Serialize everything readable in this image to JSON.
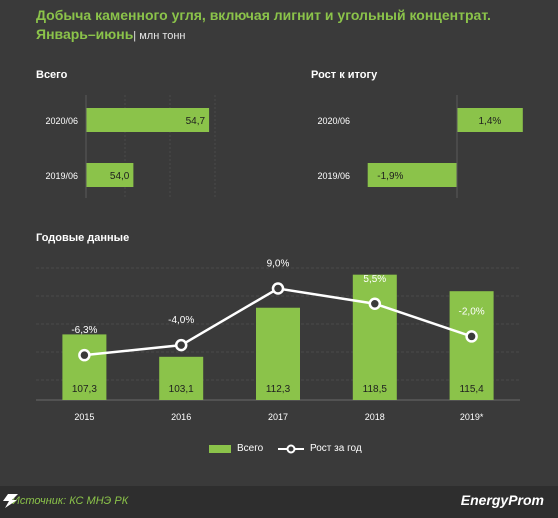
{
  "header": {
    "title": "Добыча каменного угля, включая лигнит и угольный концентрат.",
    "subtitle": "Январь–июнь",
    "unit": "| млн тонн"
  },
  "colors": {
    "background": "#3a3a3a",
    "bar": "#8bc34a",
    "line": "#ffffff",
    "grid": "#4a4a4a",
    "accent_text": "#8bc34a"
  },
  "chart_data": [
    {
      "type": "bar",
      "orientation": "horizontal",
      "title": "Всего",
      "categories": [
        "2020/06",
        "2019/06"
      ],
      "values": [
        54.7,
        54.0
      ],
      "labels": [
        "54,7",
        "54,0"
      ]
    },
    {
      "type": "bar",
      "orientation": "horizontal",
      "title": "Рост к итогу",
      "categories": [
        "2020/06",
        "2019/06"
      ],
      "values": [
        1.4,
        -1.9
      ],
      "labels": [
        "1,4%",
        "-1,9%"
      ]
    },
    {
      "type": "bar",
      "title": "Годовые данные",
      "categories": [
        "2015",
        "2016",
        "2017",
        "2018",
        "2019*"
      ],
      "series": [
        {
          "name": "Всего",
          "type": "bar",
          "values": [
            107.3,
            103.1,
            112.3,
            118.5,
            115.4
          ],
          "labels": [
            "107,3",
            "103,1",
            "112,3",
            "118,5",
            "115,4"
          ]
        },
        {
          "name": "Рост за год",
          "type": "line",
          "values": [
            -6.3,
            -4.0,
            9.0,
            5.5,
            -2.0
          ],
          "labels": [
            "-6,3%",
            "-4,0%",
            "9,0%",
            "5,5%",
            "-2,0%"
          ]
        }
      ],
      "grid": true,
      "legend": "bottom-center"
    }
  ],
  "footer": {
    "source": "Источник: КС МНЭ РК",
    "brand": "EnergyProm"
  }
}
